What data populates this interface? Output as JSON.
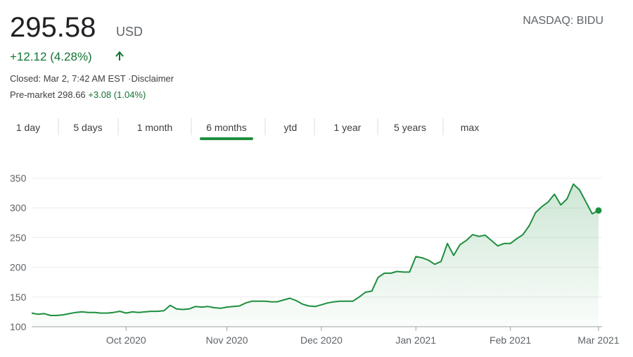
{
  "header": {
    "price": "295.58",
    "currency": "USD",
    "change": "+12.12 (4.28%)",
    "status": "Closed: Mar 2, 7:42 AM EST ·Disclaimer",
    "premarket_label": "Pre-market 298.66",
    "premarket_change": "+3.08 (1.04%)",
    "ticker": "NASDAQ: BIDU"
  },
  "tabs": [
    "1 day",
    "5 days",
    "1 month",
    "6 months",
    "ytd",
    "1 year",
    "5 years",
    "max"
  ],
  "selected_tab": 3,
  "chart_data": {
    "type": "line",
    "categories": [
      null,
      null,
      null,
      null,
      null,
      null,
      null,
      null,
      null,
      null,
      null,
      null,
      null,
      null,
      null,
      "Oct 2020",
      null,
      null,
      null,
      null,
      null,
      null,
      null,
      null,
      null,
      null,
      null,
      null,
      null,
      null,
      null,
      "Nov 2020",
      null,
      null,
      null,
      null,
      null,
      null,
      null,
      null,
      null,
      null,
      null,
      null,
      null,
      null,
      "Dec 2020",
      null,
      null,
      null,
      null,
      null,
      null,
      null,
      null,
      null,
      null,
      null,
      null,
      null,
      null,
      "Jan 2021",
      null,
      null,
      null,
      null,
      null,
      null,
      null,
      null,
      null,
      null,
      null,
      null,
      null,
      null,
      "Feb 2021",
      null,
      null,
      null,
      null,
      null,
      null,
      null,
      null,
      null,
      null,
      null,
      null,
      null,
      "Mar 2021"
    ],
    "series": [
      {
        "color": "#1e8e3e",
        "values": [
          123,
          121,
          122,
          119,
          119,
          120,
          122,
          124,
          125,
          124,
          124,
          123,
          123,
          124,
          126,
          123,
          125,
          124,
          125,
          126,
          126,
          127,
          136,
          130,
          129,
          130,
          134,
          133,
          134,
          132,
          131,
          133,
          134,
          135,
          140,
          143,
          143,
          143,
          142,
          142,
          145,
          148,
          144,
          138,
          135,
          134,
          137,
          140,
          142,
          143,
          143,
          143,
          150,
          158,
          160,
          183,
          190,
          190,
          193,
          192,
          192,
          218,
          216,
          212,
          205,
          210,
          240,
          220,
          238,
          245,
          255,
          252,
          254,
          245,
          236,
          240,
          240,
          248,
          255,
          270,
          292,
          302,
          310,
          323,
          305,
          315,
          340,
          330,
          310,
          290,
          295.58
        ]
      }
    ],
    "ylim": [
      100,
      350
    ],
    "yticks": [
      100,
      150,
      200,
      250,
      300,
      350
    ],
    "grid": true
  }
}
